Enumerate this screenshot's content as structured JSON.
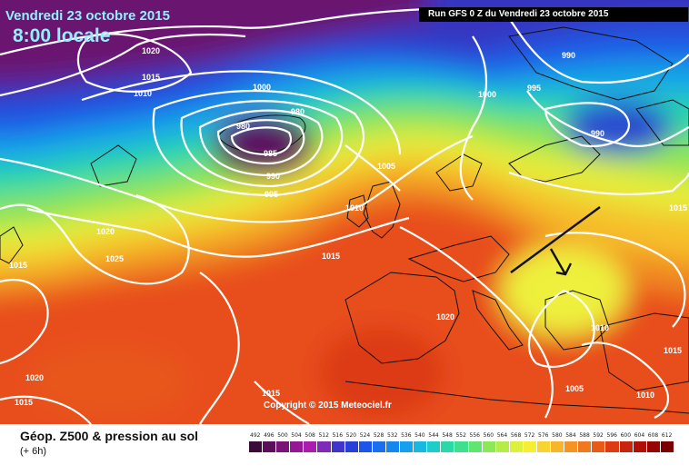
{
  "header": {
    "date": "Vendredi 23 octobre 2015",
    "time": "8:00 locale",
    "run": "Run GFS 0 Z du Vendredi 23 octobre 2015"
  },
  "copyright": "Copyright © 2015 Meteociel.fr",
  "footer": {
    "title": "Géop. Z500 & pression au sol",
    "subtitle": "(+ 6h)"
  },
  "scale": {
    "values": [
      "492",
      "496",
      "500",
      "504",
      "508",
      "512",
      "516",
      "520",
      "524",
      "528",
      "532",
      "536",
      "540",
      "544",
      "548",
      "552",
      "556",
      "560",
      "564",
      "568",
      "572",
      "576",
      "580",
      "584",
      "588",
      "592",
      "596",
      "600",
      "604",
      "608",
      "612"
    ],
    "colors": [
      "#3a0b3a",
      "#5a0f58",
      "#7a1378",
      "#941896",
      "#aa1cb0",
      "#7d2bb8",
      "#4035c8",
      "#2740d8",
      "#1c55e8",
      "#1a6ef0",
      "#1588f0",
      "#14a0ec",
      "#18b8e0",
      "#1ecdc8",
      "#2ad8a8",
      "#3ee090",
      "#62e470",
      "#8ce858",
      "#b6ec48",
      "#dcf03c",
      "#f6ee30",
      "#f8d430",
      "#f8b42a",
      "#f59424",
      "#f0781e",
      "#e85a18",
      "#dc3c14",
      "#c8240e",
      "#b01008",
      "#960404",
      "#7a0000"
    ]
  },
  "isobars": [
    "1020",
    "1015",
    "1010",
    "1000",
    "980",
    "980",
    "985",
    "990",
    "995",
    "1005",
    "1010",
    "1020",
    "1025",
    "1015",
    "1015",
    "990",
    "1000",
    "995",
    "990",
    "1015",
    "1020",
    "1010",
    "1015",
    "1005",
    "1010",
    "1020",
    "1015",
    "1015"
  ]
}
